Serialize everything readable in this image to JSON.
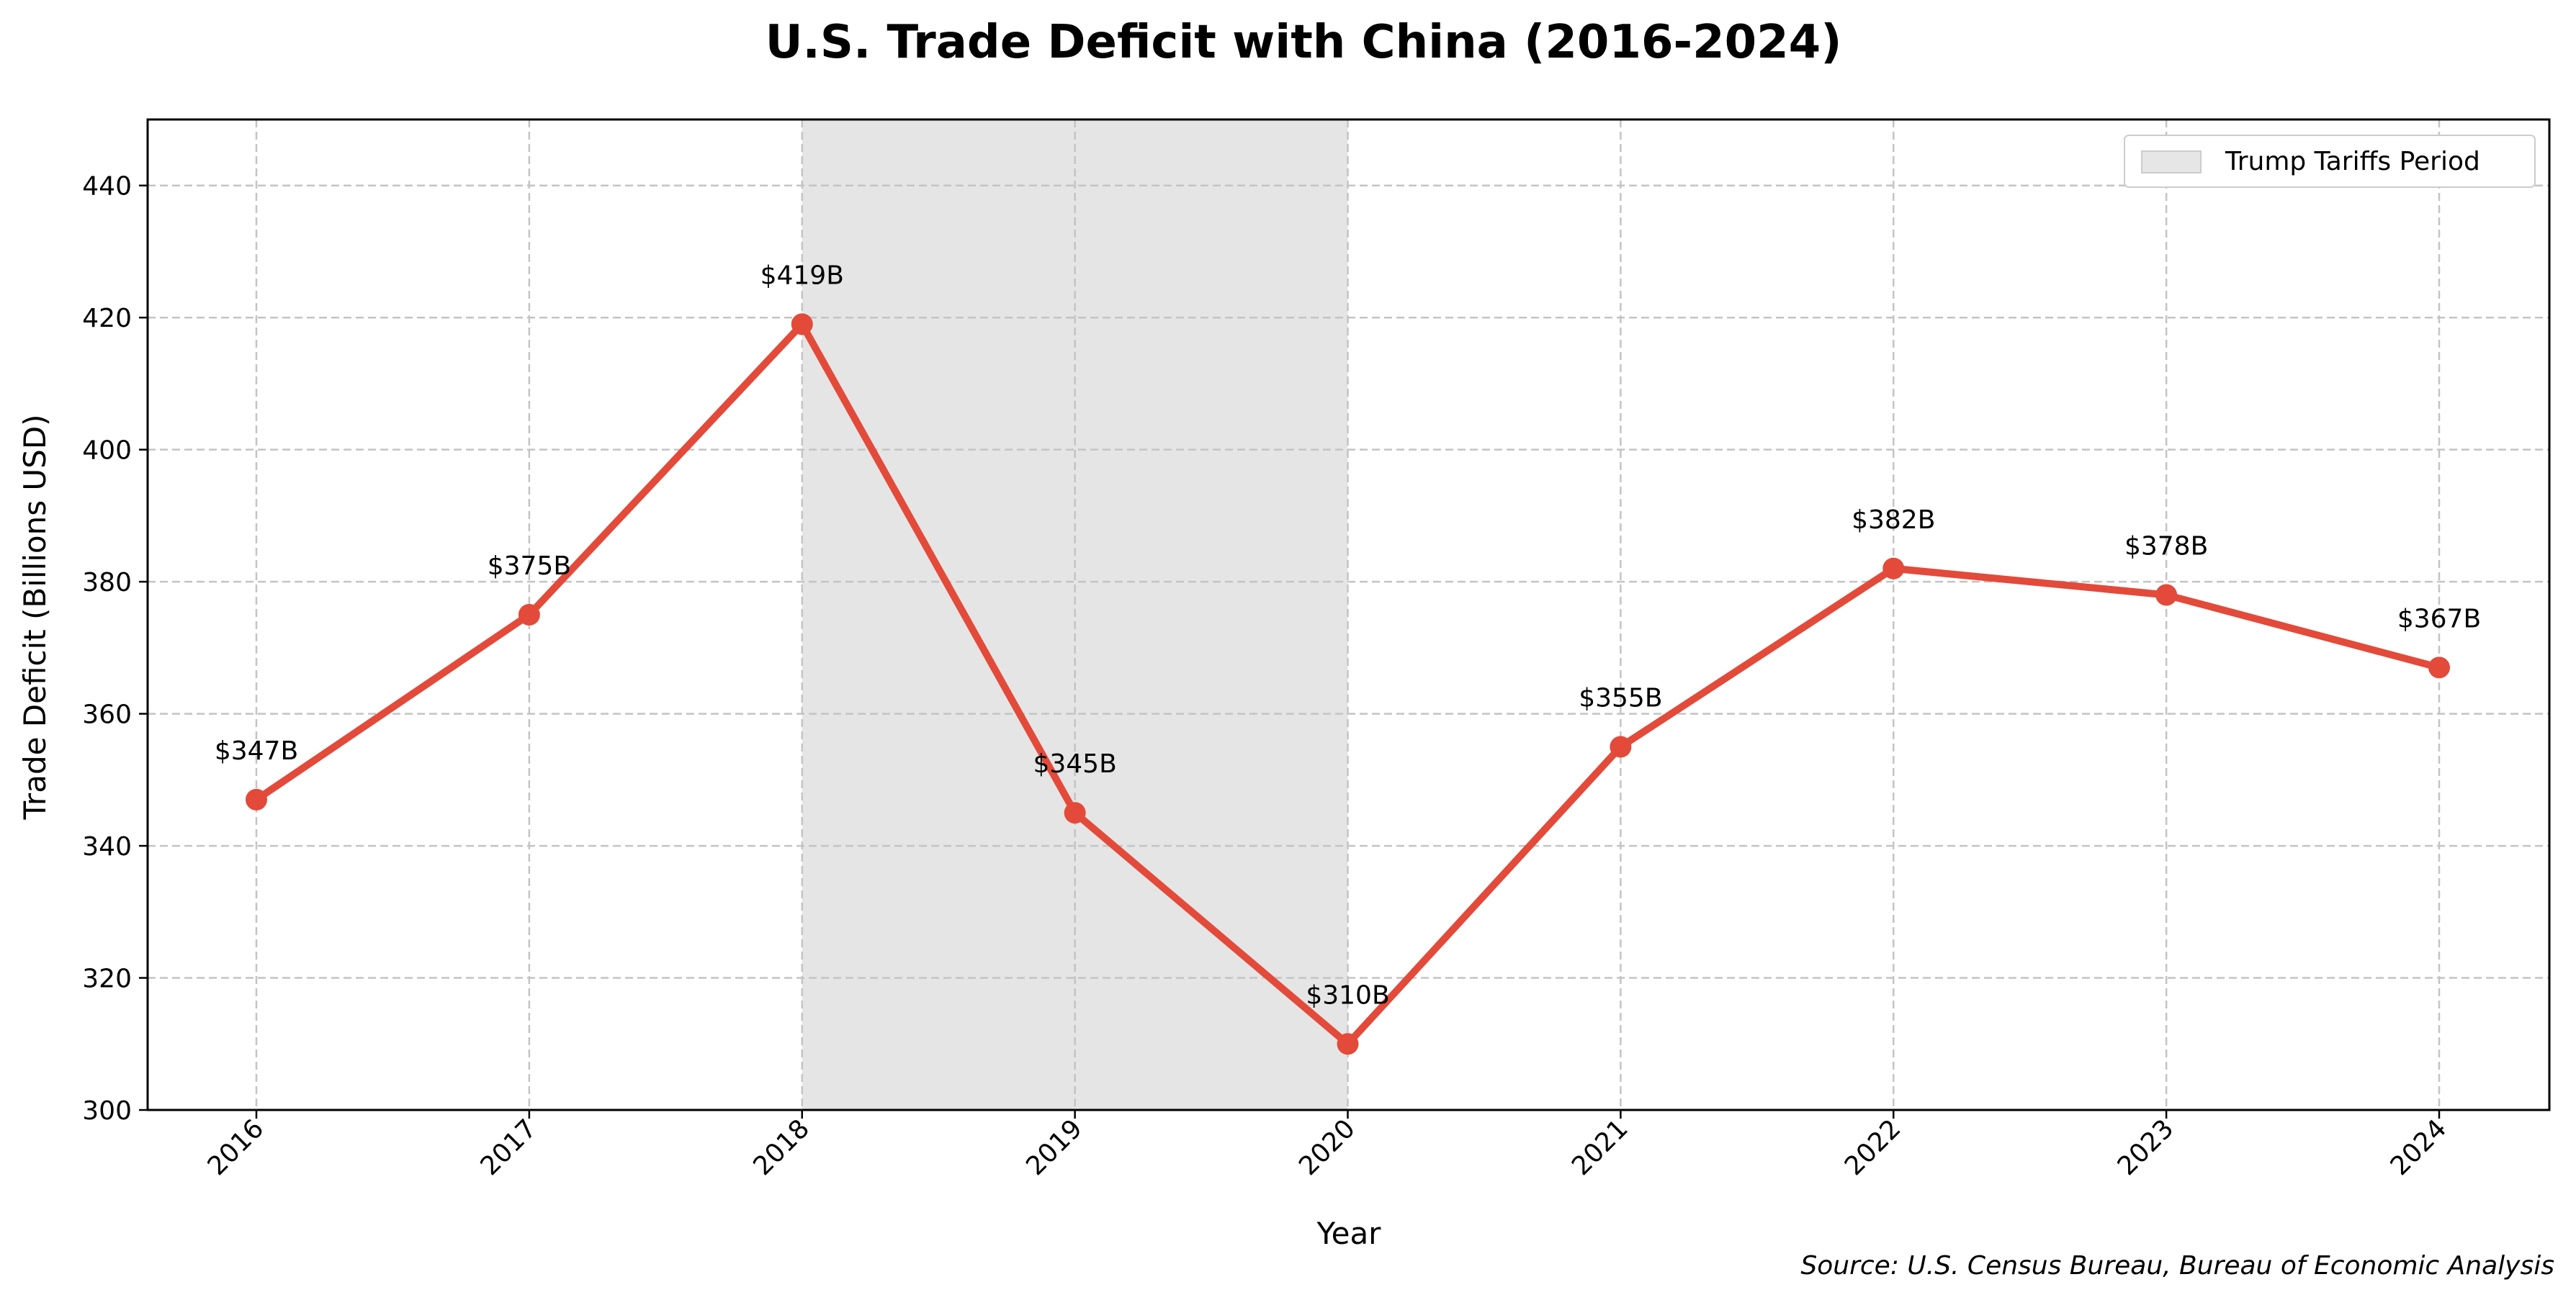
{
  "chart_data": {
    "type": "line",
    "title": "U.S. Trade Deficit with China (2016-2024)",
    "xlabel": "Year",
    "ylabel": "Trade Deficit (Billions USD)",
    "x": [
      "2016",
      "2017",
      "2018",
      "2019",
      "2020",
      "2021",
      "2022",
      "2023",
      "2024"
    ],
    "series": [
      {
        "values": [
          347,
          375,
          419,
          345,
          310,
          355,
          382,
          378,
          367
        ],
        "data_labels": [
          "$347B",
          "$375B",
          "$419B",
          "$345B",
          "$310B",
          "$355B",
          "$382B",
          "$378B",
          "$367B"
        ],
        "color": "#e34a3a"
      }
    ],
    "ylim": [
      300,
      450
    ],
    "yticks": [
      "300",
      "320",
      "340",
      "360",
      "380",
      "400",
      "420",
      "440"
    ],
    "grid": true,
    "legend": {
      "placement": "top-right",
      "entries": [
        {
          "label": "Trump Tariffs Period",
          "color": "#d9d9d9"
        }
      ]
    },
    "shaded_region": {
      "x_start": "2018",
      "x_end": "2020",
      "label": "Trump Tariffs Period"
    },
    "source": "Source: U.S. Census Bureau, Bureau of Economic Analysis"
  }
}
